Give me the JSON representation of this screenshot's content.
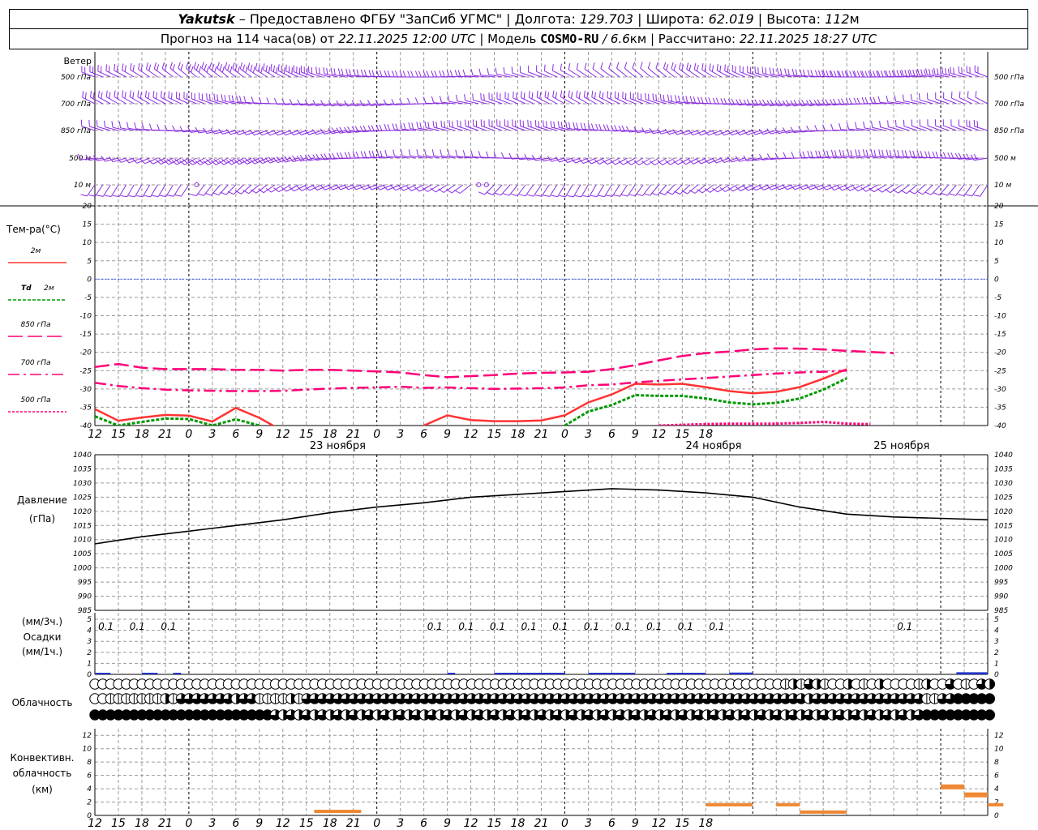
{
  "header": {
    "line1": {
      "city": "Yakutsk",
      "dash": " – ",
      "provider": "Предоставлено ФГБУ \"ЗапСиб УГМС\"",
      "sep": " | ",
      "lon_label": "Долгота: ",
      "lon_value": "129.703",
      "lat_label": "Широта: ",
      "lat_value": "62.019",
      "alt_label": "Высота: ",
      "alt_value": "112",
      "alt_unit": "м"
    },
    "line2": {
      "forecast_label": "Прогноз на 114 часа(ов) от ",
      "forecast_time": "22.11.2025 12:00 UTC",
      "model_label": " | Модель ",
      "model_name": "COSMO-RU",
      "model_res": " / 6.6",
      "model_unit": "км",
      "calc_label": " | Рассчитано: ",
      "calc_time": "22.11.2025 18:27 UTC"
    }
  },
  "labels": {
    "wind": "Ветер",
    "levels": [
      "500 гПа",
      "700 гПа",
      "850 гПа",
      "500 м",
      "10 м"
    ],
    "temp_title": "Тем-ра(°C)",
    "legend_2m": "2м",
    "legend_td": "Td",
    "legend_td_2m": "2м",
    "legend_850": "850 гПа",
    "legend_700": "700 гПа",
    "legend_500": "500 гПа",
    "pressure_title": "Давление",
    "pressure_unit": "(гПа)",
    "precip_3h": "(мм/3ч.)",
    "precip_title": "Осадки",
    "precip_1h": "(мм/1ч.)",
    "cloud_title": "Облачность",
    "conv_1": "Конвективн.",
    "conv_2": "облачность",
    "conv_3": "(км)",
    "day_labels": [
      "23 ноября",
      "24 ноября",
      "25 ноября"
    ],
    "hour_ticks": [
      "12",
      "15",
      "18",
      "21",
      "0",
      "3",
      "6",
      "9",
      "12",
      "15",
      "18",
      "21",
      "0",
      "3",
      "6",
      "9",
      "12",
      "15",
      "18",
      "21",
      "0",
      "3",
      "6",
      "9",
      "12",
      "15",
      "18"
    ],
    "temp_ticks": [
      "20",
      "15",
      "10",
      "5",
      "0",
      "-5",
      "-10",
      "-15",
      "-20",
      "-25",
      "-30",
      "-35",
      "-40"
    ],
    "pressure_ticks": [
      "1040",
      "1035",
      "1030",
      "1025",
      "1020",
      "1015",
      "1010",
      "1005",
      "1000",
      "995",
      "990",
      "985"
    ],
    "precip_ticks": [
      "5",
      "4",
      "3",
      "2",
      "1",
      "0"
    ],
    "conv_ticks": [
      "12",
      "10",
      "8",
      "6",
      "4",
      "2",
      "0"
    ]
  },
  "colors": {
    "wind": "#8a2be2",
    "t2m": "#ff3333",
    "td2m": "#009900",
    "t850": "#ff0077",
    "t700": "#ff0077",
    "t500": "#ff0077",
    "zero_line": "#3355ff",
    "pressure": "#000000",
    "precip": "#2233cc",
    "convective": "#ee8833",
    "grid": "#9a9a9a"
  },
  "chart_data": [
    {
      "type": "line",
      "name": "temperature",
      "x_hours": [
        0,
        3,
        6,
        9,
        12,
        15,
        18,
        21,
        24,
        27,
        30,
        33,
        36,
        39,
        42,
        45,
        48,
        51,
        54,
        57,
        60,
        63,
        66,
        69,
        72,
        75,
        78,
        81,
        84,
        87,
        90,
        93,
        96,
        99,
        102,
        105,
        108,
        111,
        114
      ],
      "ylim": [
        -40,
        20
      ],
      "series": [
        {
          "name": "2м",
          "style": "solid",
          "values": [
            -35.5,
            -38.7,
            -37.8,
            -37.1,
            -37.3,
            -38.9,
            -35.2,
            -37.9,
            -41.5,
            null,
            null,
            null,
            null,
            null,
            -40,
            -37.2,
            -38.5,
            -38.8,
            -38.8,
            -38.6,
            -37.2,
            -33.7,
            -31.5,
            -28.6,
            -28.8,
            -28.6,
            -29.5,
            -30.6,
            -31.2,
            -30.8,
            -29.5,
            -27.2,
            -24.6,
            null,
            null,
            null,
            null,
            null,
            null
          ]
        },
        {
          "name": "Td 2м",
          "style": "dashed",
          "values": [
            -37.5,
            -40,
            -39,
            -38.1,
            -38.2,
            -40,
            -38.3,
            -40,
            null,
            null,
            null,
            null,
            null,
            null,
            null,
            null,
            null,
            null,
            null,
            null,
            -40,
            -36.2,
            -34.4,
            -31.7,
            -31.9,
            -31.9,
            -32.6,
            -33.7,
            -34.2,
            -33.8,
            -32.6,
            -30.2,
            -27.1,
            null,
            null,
            null,
            null,
            null,
            null
          ]
        },
        {
          "name": "850 гПа",
          "style": "longdash",
          "values": [
            -24,
            -23.2,
            -24.2,
            -24.6,
            -24.6,
            -24.6,
            -24.8,
            -24.8,
            -25,
            -24.8,
            -24.8,
            -25,
            -25.2,
            -25.5,
            -26.2,
            -26.8,
            -26.5,
            -26.2,
            -25.8,
            -25.6,
            -25.5,
            -25.3,
            -24.6,
            -23.5,
            -22.2,
            -21.0,
            -20.2,
            -19.8,
            -19.2,
            -18.9,
            -19.0,
            -19.2,
            -19.6,
            -19.9,
            -20.2,
            null,
            null,
            null,
            null
          ]
        },
        {
          "name": "700 гПа",
          "style": "dashdot",
          "values": [
            -28.3,
            -29.2,
            -29.8,
            -30.2,
            -30.4,
            -30.5,
            -30.6,
            -30.6,
            -30.5,
            -30.2,
            -29.9,
            -29.7,
            -29.6,
            -29.4,
            -29.7,
            -29.6,
            -29.8,
            -30.0,
            -29.9,
            -29.8,
            -29.6,
            -29.0,
            -28.8,
            -28.2,
            -27.8,
            -27.4,
            -27.0,
            -26.6,
            -26.2,
            -25.8,
            -25.5,
            -25.3,
            -25.0,
            null,
            null,
            null,
            null,
            null,
            null
          ]
        },
        {
          "name": "500 гПа",
          "style": "dotted",
          "values": [
            null,
            null,
            null,
            null,
            null,
            null,
            null,
            null,
            null,
            null,
            null,
            null,
            null,
            null,
            null,
            null,
            null,
            null,
            null,
            null,
            null,
            null,
            null,
            null,
            -40,
            -39.8,
            -39.6,
            -39.5,
            -39.5,
            -39.5,
            -39.3,
            -39,
            -39.5,
            -39.6,
            null,
            null,
            null,
            null,
            null
          ]
        }
      ]
    },
    {
      "type": "line",
      "name": "pressure",
      "x_hours": [
        0,
        6,
        12,
        18,
        24,
        30,
        36,
        42,
        48,
        54,
        60,
        66,
        72,
        78,
        84,
        90,
        96,
        102,
        108,
        114
      ],
      "ylim": [
        985,
        1040
      ],
      "series": [
        {
          "name": "Давление",
          "values": [
            1008.5,
            1011,
            1013,
            1015,
            1017,
            1019.5,
            1021.5,
            1023,
            1025,
            1026,
            1027,
            1028,
            1027.5,
            1026.5,
            1025,
            1021.5,
            1019,
            1018,
            1017.5,
            1017
          ]
        }
      ]
    },
    {
      "type": "bar",
      "name": "precipitation",
      "ylim": [
        0,
        5
      ],
      "labels_hours": [
        1,
        5,
        9,
        43,
        47,
        51,
        55,
        59,
        63,
        67,
        71,
        75,
        79,
        103
      ],
      "labels_value": "0.1",
      "bars": [
        {
          "from": 0,
          "to": 2,
          "value": 0.03
        },
        {
          "from": 6,
          "to": 8,
          "value": 0.05
        },
        {
          "from": 10,
          "to": 11,
          "value": 0.04
        },
        {
          "from": 45,
          "to": 46,
          "value": 0.05
        },
        {
          "from": 51,
          "to": 60,
          "value": 0.07
        },
        {
          "from": 63,
          "to": 69,
          "value": 0.06
        },
        {
          "from": 73,
          "to": 78,
          "value": 0.06
        },
        {
          "from": 81,
          "to": 84,
          "value": 0.09
        },
        {
          "from": 110,
          "to": 114,
          "value": 0.12
        }
      ]
    },
    {
      "type": "table",
      "name": "cloudiness",
      "x_step_hours": 1,
      "rows": [
        {
          "layer": "upper",
          "values": [
            0,
            0,
            0,
            0,
            0,
            0,
            0,
            0,
            0,
            0,
            0,
            0,
            0,
            0,
            0,
            0,
            0,
            0,
            0,
            0,
            0,
            0,
            0,
            0,
            0,
            0,
            0,
            0,
            0,
            0,
            0,
            0,
            0,
            0,
            0,
            0,
            0,
            0,
            0,
            0,
            0,
            0,
            0,
            0,
            0,
            0,
            0,
            0,
            0,
            0,
            0,
            0,
            0,
            0,
            0,
            0,
            0,
            0,
            0,
            0,
            0,
            0,
            0,
            0,
            0,
            0,
            0,
            0,
            0,
            0,
            0,
            0,
            0,
            0,
            0,
            0,
            0,
            0,
            0,
            0,
            0,
            0,
            0,
            0,
            0,
            0,
            0,
            0,
            1,
            2,
            1,
            3,
            2,
            1,
            0,
            0,
            2,
            0,
            1,
            0,
            2,
            0,
            0,
            0,
            0,
            1,
            2,
            0,
            0,
            3,
            0,
            1,
            0,
            3,
            2
          ]
        },
        {
          "layer": "middle",
          "values": [
            0,
            0,
            1,
            1,
            1,
            1,
            1,
            1,
            1,
            2,
            1,
            3,
            3,
            3,
            3,
            3,
            3,
            3,
            2,
            3,
            3,
            1,
            1,
            1,
            1,
            2,
            1,
            3,
            3,
            3,
            3,
            3,
            3,
            3,
            3,
            3,
            3,
            3,
            3,
            3,
            3,
            3,
            3,
            3,
            3,
            3,
            3,
            3,
            3,
            3,
            3,
            3,
            3,
            3,
            3,
            3,
            3,
            3,
            3,
            3,
            3,
            3,
            3,
            3,
            3,
            3,
            3,
            3,
            3,
            3,
            3,
            3,
            3,
            3,
            3,
            3,
            3,
            3,
            3,
            3,
            3,
            3,
            3,
            3,
            3,
            3,
            3,
            3,
            3,
            3,
            3,
            2,
            3,
            3,
            3,
            3,
            3,
            3,
            3,
            3,
            3,
            3,
            3,
            3,
            3,
            3,
            1,
            1,
            3,
            3,
            4,
            4,
            4,
            4,
            4
          ]
        },
        {
          "layer": "lower",
          "values": [
            4,
            4,
            4,
            4,
            4,
            4,
            4,
            4,
            4,
            4,
            4,
            4,
            4,
            4,
            4,
            4,
            4,
            4,
            4,
            4,
            4,
            4,
            4,
            3,
            2,
            3,
            2,
            3,
            2,
            3,
            2,
            3,
            2,
            3,
            2,
            3,
            2,
            3,
            2,
            3,
            2,
            3,
            2,
            3,
            2,
            3,
            2,
            3,
            2,
            3,
            2,
            3,
            2,
            3,
            2,
            3,
            2,
            3,
            2,
            3,
            2,
            3,
            2,
            3,
            2,
            3,
            2,
            3,
            2,
            3,
            2,
            3,
            2,
            3,
            2,
            3,
            2,
            3,
            2,
            3,
            2,
            3,
            2,
            3,
            2,
            3,
            2,
            3,
            2,
            3,
            2,
            3,
            2,
            3,
            2,
            3,
            2,
            3,
            2,
            3,
            2,
            3,
            2,
            3,
            2,
            3,
            4,
            4,
            4,
            4,
            4,
            4,
            4,
            4,
            4
          ]
        }
      ]
    },
    {
      "type": "bar",
      "name": "convective",
      "ylim": [
        0,
        13
      ],
      "segments": [
        {
          "from": 28,
          "to": 34,
          "value": 0.6
        },
        {
          "from": 78,
          "to": 84,
          "value": 1.6
        },
        {
          "from": 87,
          "to": 90,
          "value": 1.6
        },
        {
          "from": 90,
          "to": 96,
          "value": 0.5
        },
        {
          "from": 108,
          "to": 111,
          "value": 4.4
        },
        {
          "from": 111,
          "to": 114,
          "value": 3.2
        },
        {
          "from": 114,
          "to": 116,
          "value": 1.6
        }
      ]
    },
    {
      "type": "scatter",
      "name": "wind_barbs",
      "levels": [
        "500 гПа",
        "700 гПа",
        "850 гПа",
        "500 м",
        "10 м"
      ],
      "x_step_hours": 1,
      "calm_hours_10m": [
        13,
        49,
        50
      ],
      "wind_speed_ms": [
        12,
        11,
        9,
        8,
        3
      ],
      "wind_dir_deg": [
        290,
        280,
        270,
        260,
        230
      ]
    }
  ]
}
